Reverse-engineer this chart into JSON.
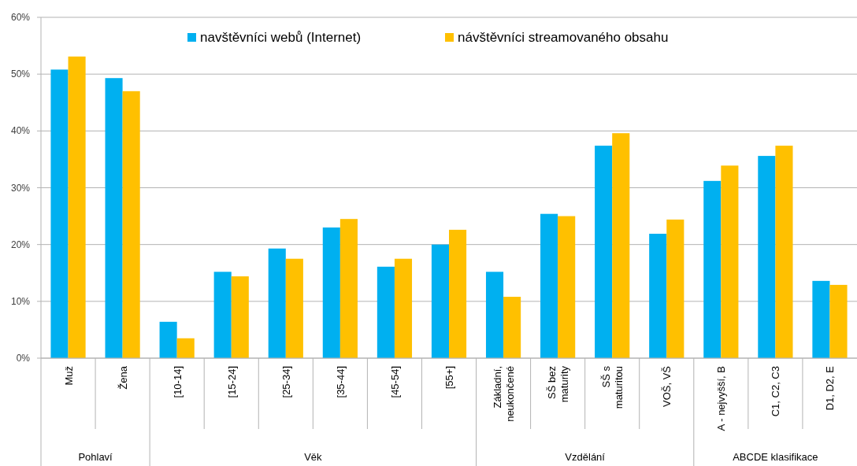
{
  "chart_data": {
    "type": "bar",
    "categories": [
      "Muž",
      "Žena",
      "[10-14]",
      "[15-24]",
      "[25-34]",
      "[35-44]",
      "[45-54]",
      "[55+]",
      "Základní, neukončené",
      "SŠ bez maturity",
      "SŠ s maturitou",
      "VOŠ, VŠ",
      "A - nejvyšší, B",
      "C1, C2, C3",
      "D1, D2, E"
    ],
    "series": [
      {
        "name": "navštěvníci webů (Internet)",
        "color": "#00b0f0",
        "values": [
          50.8,
          49.3,
          6.4,
          15.2,
          19.3,
          23.0,
          16.1,
          20.0,
          15.2,
          25.4,
          37.4,
          21.9,
          31.2,
          35.6,
          13.6
        ]
      },
      {
        "name": "návštěvníci streamovaného obsahu",
        "color": "#ffc000",
        "values": [
          53.1,
          47.0,
          3.5,
          14.4,
          17.5,
          24.5,
          17.5,
          22.6,
          10.8,
          25.0,
          39.6,
          24.4,
          33.9,
          37.4,
          12.9
        ]
      }
    ],
    "ylim": [
      0,
      60
    ],
    "yticks": [
      {
        "value": 0,
        "label": "0%"
      },
      {
        "value": 10,
        "label": "10%"
      },
      {
        "value": 20,
        "label": "20%"
      },
      {
        "value": 30,
        "label": "30%"
      },
      {
        "value": 40,
        "label": "40%"
      },
      {
        "value": 50,
        "label": "50%"
      },
      {
        "value": 60,
        "label": "60%"
      }
    ],
    "grid": "y",
    "legend": "top",
    "annotations": [
      "Pohlaví",
      "Věk",
      "Vzdělání",
      "ABCDE klasifikace"
    ]
  }
}
